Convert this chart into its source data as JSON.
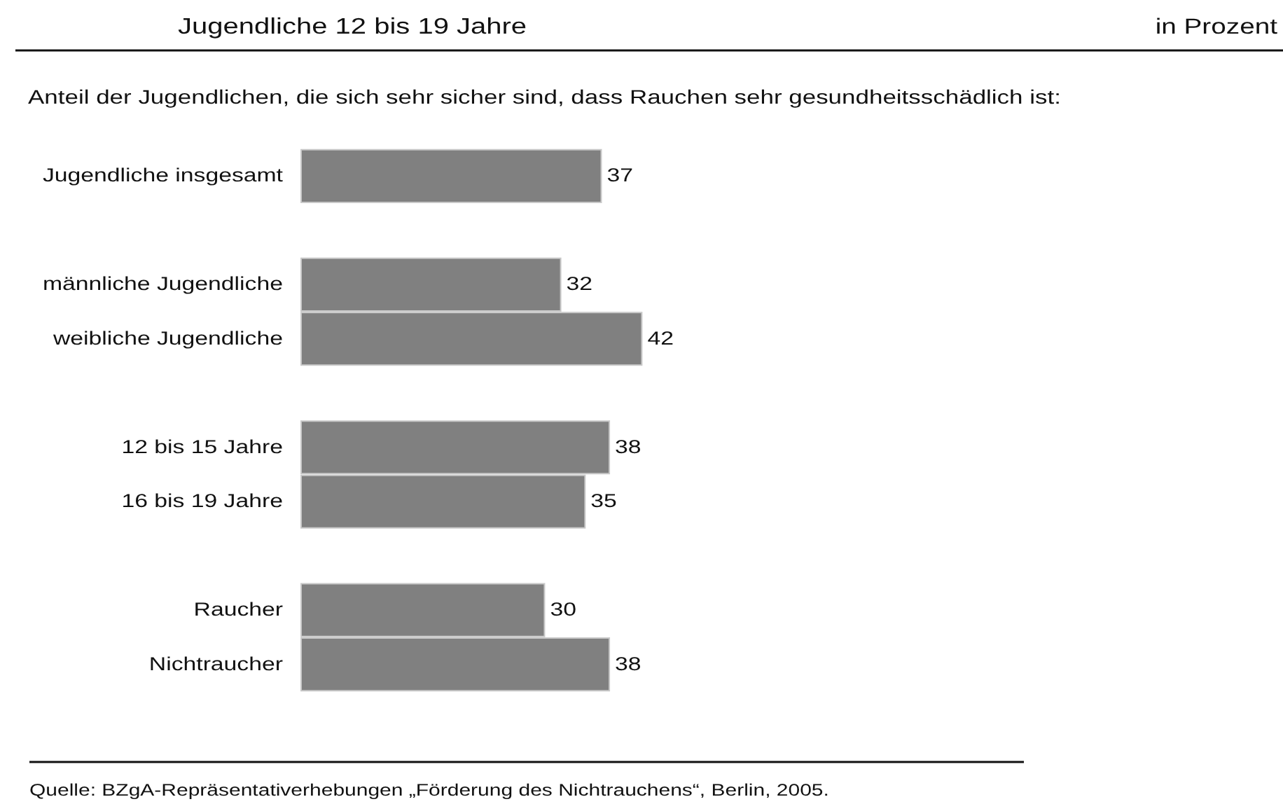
{
  "chart_data": {
    "type": "bar",
    "orientation": "horizontal",
    "title": "Jugendliche 12 bis 19 Jahre",
    "subtitle": "Anteil der Jugendlichen, die sich sehr sicher sind, dass Rauchen sehr gesundheitsschädlich ist:",
    "categories": [
      "Jugendliche insgesamt",
      null,
      "männliche Jugendliche",
      "weibliche Jugendliche",
      null,
      "12 bis 15 Jahre",
      "16 bis 19 Jahre",
      null,
      "Raucher",
      "Nichtraucher"
    ],
    "values": [
      37,
      null,
      32,
      42,
      null,
      38,
      35,
      null,
      30,
      38
    ],
    "color": "#808080",
    "data_labels": true,
    "annotations": [
      "in Prozent",
      "Quelle: BZgA-Repräsentativerhebungen „Förderung des Nichtrauchens“, Berlin, 2005."
    ]
  }
}
